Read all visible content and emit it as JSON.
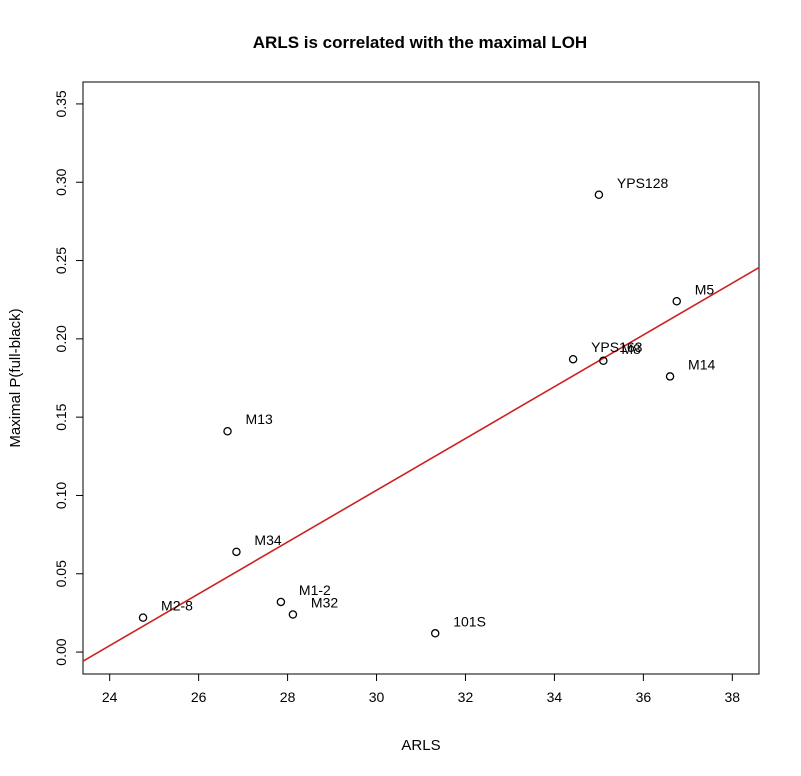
{
  "chart_data": {
    "type": "scatter",
    "title": "ARLS is correlated with the maximal LOH",
    "xlabel": "ARLS",
    "ylabel": "Maximal P(full-black)",
    "xlim": [
      23.4,
      38.6
    ],
    "ylim": [
      -0.014,
      0.364
    ],
    "xticks": [
      "24",
      "26",
      "28",
      "30",
      "32",
      "34",
      "36",
      "38"
    ],
    "yticks": [
      "0.00",
      "0.05",
      "0.10",
      "0.15",
      "0.20",
      "0.25",
      "0.30",
      "0.35"
    ],
    "grid": false,
    "points": [
      {
        "label": "YPS128",
        "x": 35.0,
        "y": 0.292
      },
      {
        "label": "M5",
        "x": 36.75,
        "y": 0.224
      },
      {
        "label": "YPS163",
        "x": 34.42,
        "y": 0.187
      },
      {
        "label": "M8",
        "x": 35.1,
        "y": 0.186
      },
      {
        "label": "M14",
        "x": 36.6,
        "y": 0.176
      },
      {
        "label": "M13",
        "x": 26.65,
        "y": 0.141
      },
      {
        "label": "M34",
        "x": 26.85,
        "y": 0.064
      },
      {
        "label": "M1-2",
        "x": 27.85,
        "y": 0.032
      },
      {
        "label": "M32",
        "x": 28.12,
        "y": 0.024
      },
      {
        "label": "M2-8",
        "x": 24.75,
        "y": 0.022
      },
      {
        "label": "101S",
        "x": 31.32,
        "y": 0.012
      }
    ],
    "regression_line": {
      "color": "#cc2222",
      "x": [
        23.4,
        38.6
      ],
      "y": [
        -0.0058,
        0.2455
      ]
    },
    "marker": "open-circle"
  }
}
